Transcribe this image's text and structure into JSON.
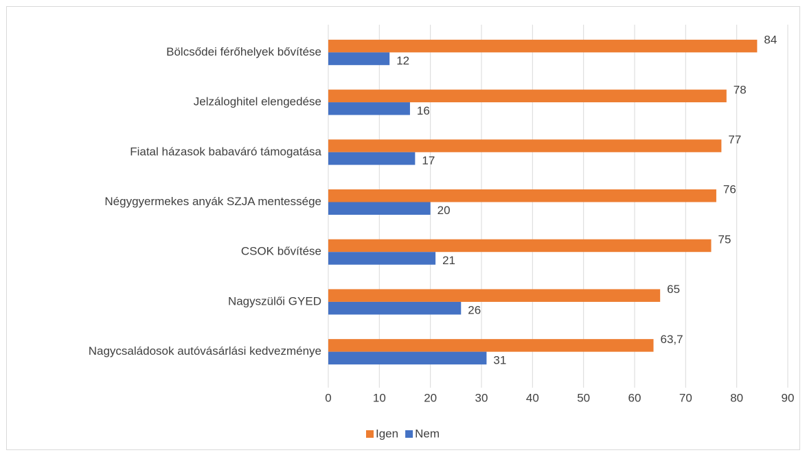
{
  "chart_data": {
    "type": "bar",
    "orientation": "horizontal",
    "categories": [
      "Bölcsődei férőhelyek bővítése",
      "Jelzáloghitel elengedése",
      "Fiatal házasok babaváró támogatása",
      "Négygyermekes anyák SZJA mentessége",
      "CSOK bővítése",
      "Nagyszülői GYED",
      "Nagycsaládosok autóvásárlási kedvezménye"
    ],
    "series": [
      {
        "name": "Igen",
        "color": "#ed7d31",
        "values": [
          84,
          78,
          77,
          76,
          75,
          65,
          63.7
        ],
        "value_labels": [
          "84",
          "78",
          "77",
          "76",
          "75",
          "65",
          "63,7"
        ]
      },
      {
        "name": "Nem",
        "color": "#4472c4",
        "values": [
          12,
          16,
          17,
          20,
          21,
          26,
          31
        ]
      }
    ],
    "xlim": [
      0,
      90
    ],
    "xticks": [
      0,
      10,
      20,
      30,
      40,
      50,
      60,
      70,
      80,
      90
    ],
    "grid": true,
    "legend": "bottom"
  }
}
